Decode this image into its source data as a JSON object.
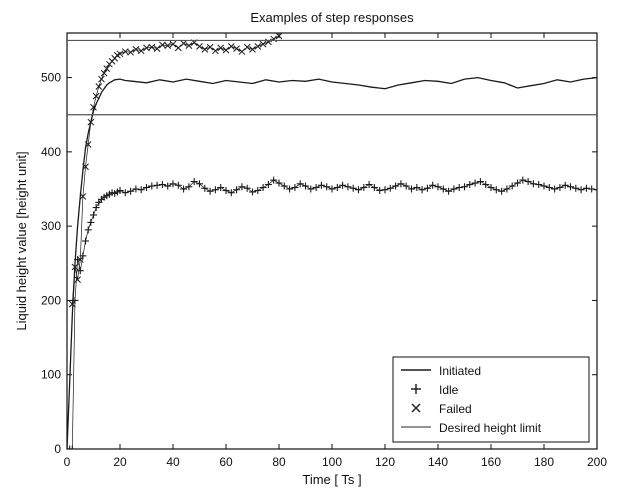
{
  "chart_data": {
    "type": "line",
    "title": "Examples of step responses",
    "xlabel": "Time [ Ts ]",
    "ylabel": "Liquid height value [height unit]",
    "xlim": [
      0,
      200
    ],
    "ylim": [
      0,
      560
    ],
    "x_ticks": [
      0,
      20,
      40,
      60,
      80,
      100,
      120,
      140,
      160,
      180,
      200
    ],
    "y_ticks": [
      0,
      100,
      200,
      300,
      400,
      500
    ],
    "grid": false,
    "legend_position": "bottom-right",
    "colors": {
      "axis": "#111111",
      "line": "#1a1a1a",
      "limit": "#555555"
    },
    "series": [
      {
        "name": "Initiated",
        "marker": "line",
        "x": [
          0,
          1,
          2,
          3,
          4,
          5,
          6,
          7,
          8,
          9,
          10,
          11,
          12,
          13,
          14,
          15,
          16,
          17,
          18,
          20,
          22,
          25,
          30,
          35,
          40,
          45,
          50,
          55,
          60,
          65,
          70,
          75,
          80,
          85,
          90,
          95,
          100,
          105,
          110,
          115,
          120,
          125,
          130,
          135,
          140,
          145,
          150,
          155,
          160,
          165,
          170,
          175,
          180,
          185,
          190,
          195,
          200
        ],
        "y": [
          0,
          90,
          180,
          250,
          300,
          340,
          375,
          405,
          425,
          440,
          455,
          465,
          472,
          480,
          485,
          490,
          493,
          495,
          497,
          498,
          496,
          495,
          493,
          497,
          494,
          498,
          495,
          492,
          496,
          494,
          492,
          497,
          494,
          496,
          495,
          498,
          494,
          492,
          490,
          487,
          485,
          490,
          493,
          496,
          495,
          492,
          498,
          500,
          496,
          493,
          486,
          489,
          492,
          497,
          494,
          498,
          500
        ]
      },
      {
        "name": "Idle",
        "marker": "plus",
        "x": [
          0,
          1,
          2,
          3,
          4,
          5,
          6,
          7,
          8,
          9,
          10,
          11,
          12,
          13,
          14,
          15,
          16,
          17,
          18,
          19,
          20,
          22,
          24,
          26,
          28,
          30,
          32,
          34,
          36,
          38,
          40,
          42,
          44,
          46,
          48,
          50,
          52,
          54,
          56,
          58,
          60,
          62,
          64,
          66,
          68,
          70,
          72,
          74,
          76,
          78,
          80,
          82,
          84,
          86,
          88,
          90,
          92,
          94,
          96,
          98,
          100,
          102,
          104,
          106,
          108,
          110,
          112,
          114,
          116,
          118,
          120,
          122,
          124,
          126,
          128,
          130,
          132,
          134,
          136,
          138,
          140,
          142,
          144,
          146,
          148,
          150,
          152,
          154,
          156,
          158,
          160,
          162,
          164,
          166,
          168,
          170,
          172,
          174,
          176,
          178,
          180,
          182,
          184,
          186,
          188,
          190,
          192,
          194,
          196,
          198,
          200
        ],
        "y": [
          0,
          0,
          0,
          200,
          255,
          240,
          260,
          280,
          295,
          305,
          315,
          325,
          332,
          336,
          339,
          341,
          343,
          345,
          344,
          346,
          348,
          345,
          347,
          350,
          349,
          352,
          354,
          355,
          356,
          354,
          357,
          355,
          350,
          353,
          360,
          357,
          351,
          347,
          349,
          352,
          348,
          345,
          349,
          353,
          351,
          346,
          348,
          352,
          356,
          362,
          358,
          354,
          350,
          352,
          357,
          354,
          350,
          352,
          355,
          353,
          350,
          352,
          355,
          353,
          351,
          349,
          352,
          356,
          352,
          348,
          349,
          351,
          354,
          357,
          354,
          350,
          352,
          349,
          351,
          355,
          353,
          350,
          347,
          350,
          352,
          353,
          356,
          358,
          360,
          356,
          352,
          349,
          347,
          350,
          354,
          358,
          362,
          360,
          357,
          356,
          354,
          352,
          350,
          352,
          355,
          353,
          351,
          349,
          351,
          350,
          349
        ]
      },
      {
        "name": "Failed",
        "marker": "cross",
        "x": [
          2,
          3,
          4,
          5,
          6,
          7,
          8,
          9,
          10,
          11,
          12,
          13,
          14,
          15,
          16,
          17,
          18,
          19,
          20,
          22,
          24,
          26,
          28,
          30,
          32,
          34,
          36,
          38,
          40,
          42,
          44,
          46,
          48,
          50,
          52,
          54,
          56,
          58,
          60,
          62,
          64,
          66,
          68,
          70,
          72,
          74,
          76,
          78,
          80
        ],
        "y": [
          195,
          245,
          228,
          255,
          340,
          380,
          410,
          440,
          460,
          475,
          488,
          498,
          506,
          512,
          518,
          522,
          526,
          530,
          532,
          535,
          534,
          538,
          536,
          540,
          541,
          539,
          544,
          543,
          545,
          540,
          546,
          543,
          547,
          542,
          538,
          541,
          536,
          540,
          537,
          542,
          539,
          535,
          541,
          538,
          542,
          545,
          548,
          552,
          556
        ]
      },
      {
        "name": "Desired height limit",
        "marker": "hline",
        "values": [
          450,
          550
        ]
      }
    ]
  }
}
